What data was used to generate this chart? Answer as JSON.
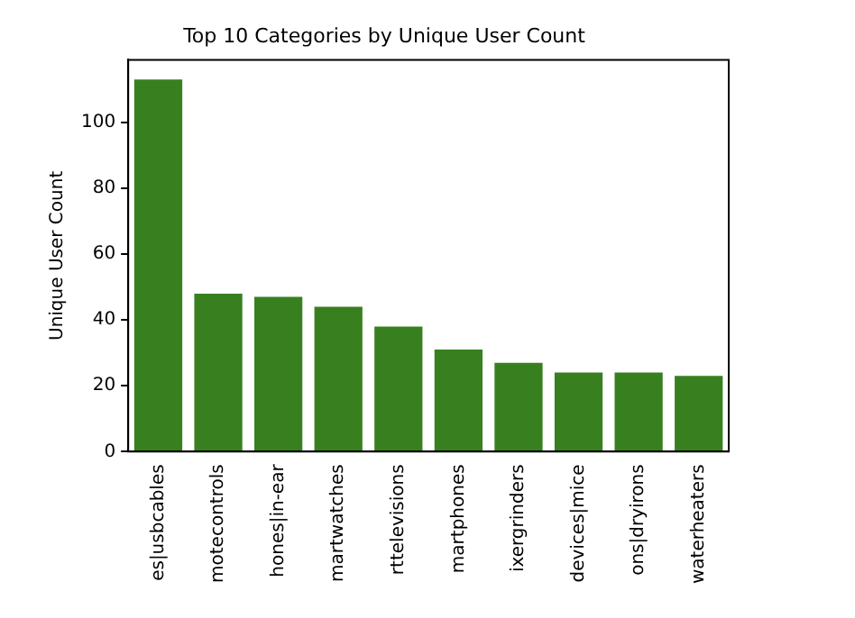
{
  "chart_data": {
    "type": "bar",
    "title": "Top 10 Categories by Unique User Count",
    "ylabel": "Unique User Count",
    "categories": [
      "es|usbcables",
      "motecontrols",
      "hones|in-ear",
      "martwatches",
      "rttelevisions",
      "martphones",
      "ixergrinders",
      "devices|mice",
      "ons|dryirons",
      "waterheaters"
    ],
    "values": [
      113,
      48,
      47,
      44,
      38,
      31,
      27,
      24,
      24,
      23
    ],
    "color": "#38801f",
    "ylim": [
      0,
      119
    ],
    "yticks": [
      0,
      20,
      40,
      60,
      80,
      100
    ],
    "grid": false,
    "legend": false
  }
}
